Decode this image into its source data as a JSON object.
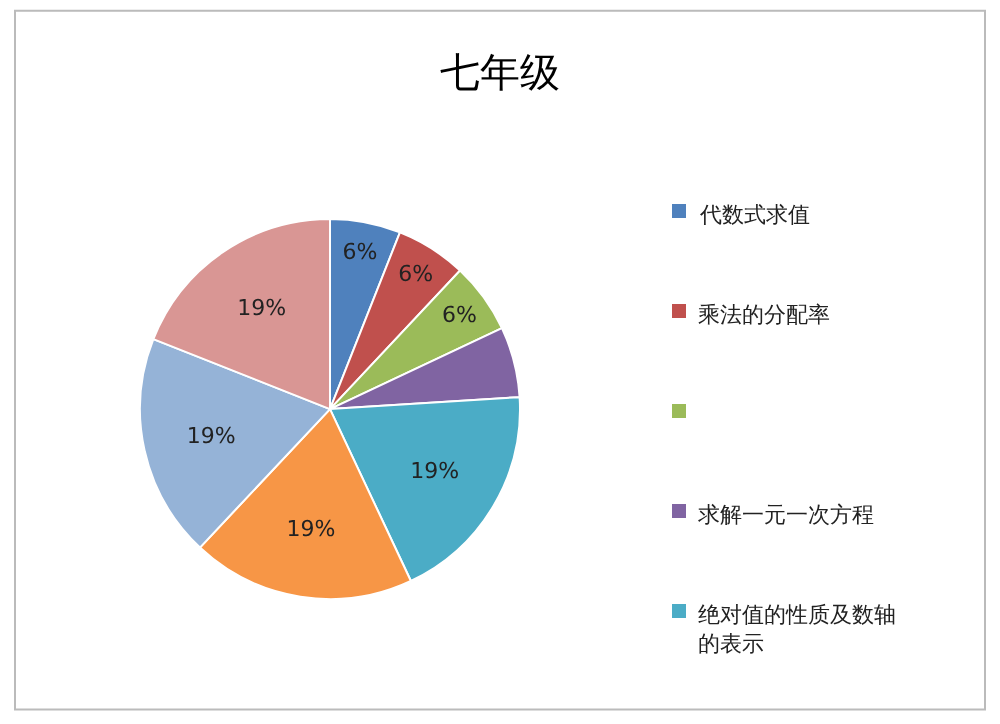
{
  "chart_data": {
    "type": "pie",
    "title": "七年级",
    "categories": [
      "代数式求值",
      "乘法的分配率",
      null,
      "求解一元一次方程",
      "绝对值的性质及数轴的表示",
      null,
      null,
      null
    ],
    "values": [
      6,
      6,
      6,
      6,
      19,
      19,
      19,
      19
    ],
    "value_labels": [
      "6%",
      "6%",
      "6%",
      null,
      "19%",
      "19%",
      "19%",
      "19%"
    ],
    "colors": [
      "#4f81bd",
      "#c0504d",
      "#9bbb59",
      "#8064a2",
      "#4bacc6",
      "#f79646",
      "#95b3d7",
      "#d99694"
    ],
    "legend": "right"
  }
}
